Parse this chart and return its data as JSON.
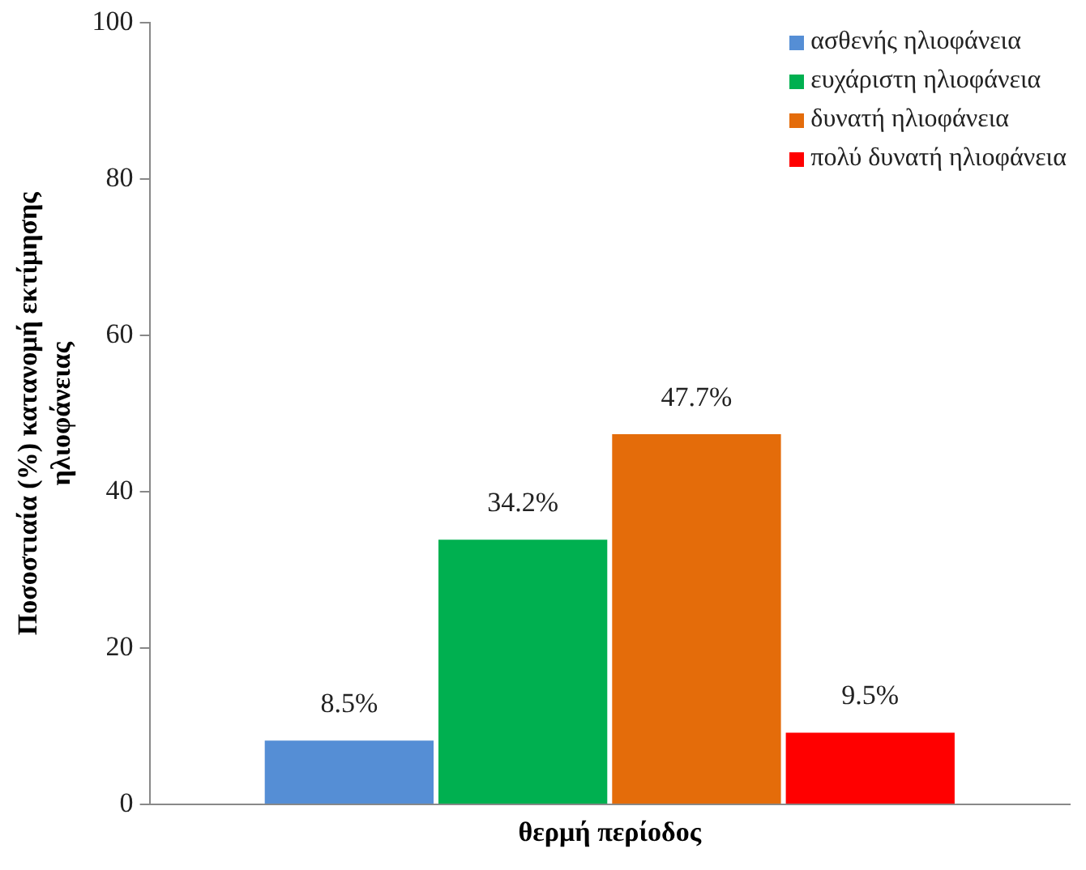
{
  "chart_data": {
    "type": "bar",
    "categories": [
      "θερμή περίοδος"
    ],
    "ylabel": "Ποσοστιαία (%) κατανομή εκτίμησης ηλιοφάνειας",
    "series": [
      {
        "name": "ασθενής ηλιοφάνεια",
        "color": "#558ed5",
        "values": [
          8.5
        ],
        "value_labels": [
          "8.5%"
        ]
      },
      {
        "name": "ευχάριστη ηλιοφάνεια",
        "color": "#00b050",
        "values": [
          34.2
        ],
        "value_labels": [
          "34.2%"
        ]
      },
      {
        "name": "δυνατή ηλιοφάνεια",
        "color": "#e46c0a",
        "values": [
          47.7
        ],
        "value_labels": [
          "47.7%"
        ]
      },
      {
        "name": "πολύ δυνατή ηλιοφάνεια",
        "color": "#ff0000",
        "values": [
          9.5
        ],
        "value_labels": [
          "9.5%"
        ]
      }
    ],
    "ylim": [
      0,
      100
    ],
    "yticks": [
      0,
      20,
      40,
      60,
      80,
      100
    ],
    "grid": false,
    "legend": "top right"
  }
}
